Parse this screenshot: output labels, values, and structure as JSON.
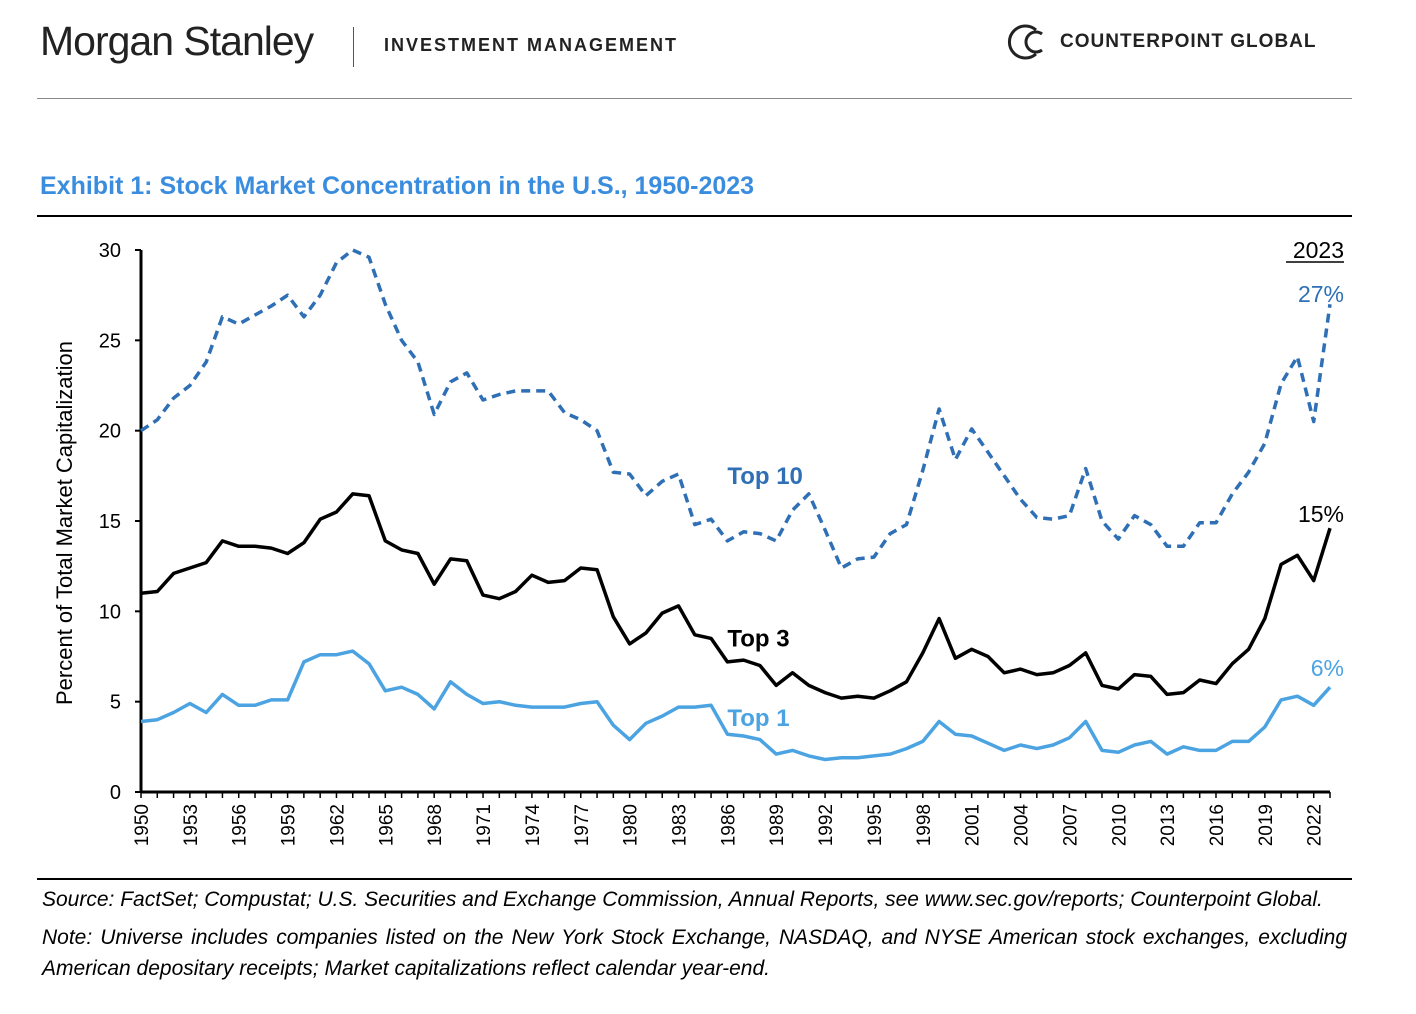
{
  "header": {
    "brand": "Morgan Stanley",
    "brand_sub": "INVESTMENT MANAGEMENT",
    "partner": "COUNTERPOINT GLOBAL",
    "partner_icon": "counterpoint-logo-icon"
  },
  "exhibit_title": "Exhibit 1: Stock Market Concentration in the U.S., 1950-2023",
  "chart_data": {
    "type": "line",
    "xlabel": "",
    "ylabel": "Percent of Total Market Capitalization",
    "ylim": [
      0,
      30
    ],
    "yticks": [
      "0",
      "5",
      "10",
      "15",
      "20",
      "25",
      "30"
    ],
    "xlim": [
      1950,
      2023
    ],
    "xticks": [
      "1950",
      "1953",
      "1956",
      "1959",
      "1962",
      "1965",
      "1968",
      "1971",
      "1974",
      "1977",
      "1980",
      "1983",
      "1986",
      "1989",
      "1992",
      "1995",
      "1998",
      "2001",
      "2004",
      "2007",
      "2010",
      "2013",
      "2016",
      "2019",
      "2022"
    ],
    "grid": false,
    "year_header": "2023",
    "x": [
      1950,
      1951,
      1952,
      1953,
      1954,
      1955,
      1956,
      1957,
      1958,
      1959,
      1960,
      1961,
      1962,
      1963,
      1964,
      1965,
      1966,
      1967,
      1968,
      1969,
      1970,
      1971,
      1972,
      1973,
      1974,
      1975,
      1976,
      1977,
      1978,
      1979,
      1980,
      1981,
      1982,
      1983,
      1984,
      1985,
      1986,
      1987,
      1988,
      1989,
      1990,
      1991,
      1992,
      1993,
      1994,
      1995,
      1996,
      1997,
      1998,
      1999,
      2000,
      2001,
      2002,
      2003,
      2004,
      2005,
      2006,
      2007,
      2008,
      2009,
      2010,
      2011,
      2012,
      2013,
      2014,
      2015,
      2016,
      2017,
      2018,
      2019,
      2020,
      2021,
      2022,
      2023
    ],
    "series": [
      {
        "name": "Top 10",
        "color": "#2e6fb5",
        "dash": true,
        "end_label": "27%",
        "values": [
          20.0,
          20.6,
          21.8,
          22.5,
          23.8,
          26.3,
          25.9,
          26.4,
          26.9,
          27.5,
          26.3,
          27.5,
          29.3,
          30.0,
          29.6,
          27.0,
          25.0,
          23.8,
          20.9,
          22.7,
          23.2,
          21.7,
          22.0,
          22.2,
          22.2,
          22.2,
          21.0,
          20.6,
          20.0,
          17.7,
          17.6,
          16.4,
          17.2,
          17.6,
          14.8,
          15.1,
          13.9,
          14.4,
          14.3,
          13.9,
          15.6,
          16.5,
          14.5,
          12.4,
          12.9,
          13.0,
          14.3,
          14.8,
          17.8,
          21.2,
          18.4,
          20.1,
          18.8,
          17.5,
          16.2,
          15.2,
          15.1,
          15.3,
          17.9,
          15.0,
          14.0,
          15.3,
          14.8,
          13.6,
          13.6,
          14.9,
          14.9,
          16.5,
          17.7,
          19.3,
          22.6,
          24.1,
          20.5,
          27.0
        ]
      },
      {
        "name": "Top 3",
        "color": "#000000",
        "dash": false,
        "end_label": "15%",
        "values": [
          11.0,
          11.1,
          12.1,
          12.4,
          12.7,
          13.9,
          13.6,
          13.6,
          13.5,
          13.2,
          13.8,
          15.1,
          15.5,
          16.5,
          16.4,
          13.9,
          13.4,
          13.2,
          11.5,
          12.9,
          12.8,
          10.9,
          10.7,
          11.1,
          12.0,
          11.6,
          11.7,
          12.4,
          12.3,
          9.7,
          8.2,
          8.8,
          9.9,
          10.3,
          8.7,
          8.5,
          7.2,
          7.3,
          7.0,
          5.9,
          6.6,
          5.9,
          5.5,
          5.2,
          5.3,
          5.2,
          5.6,
          6.1,
          7.7,
          9.6,
          7.4,
          7.9,
          7.5,
          6.6,
          6.8,
          6.5,
          6.6,
          7.0,
          7.7,
          5.9,
          5.7,
          6.5,
          6.4,
          5.4,
          5.5,
          6.2,
          6.0,
          7.1,
          7.9,
          9.6,
          12.6,
          13.1,
          11.7,
          14.6
        ]
      },
      {
        "name": "Top 1",
        "color": "#4ba3e2",
        "dash": false,
        "end_label": "6%",
        "values": [
          3.9,
          4.0,
          4.4,
          4.9,
          4.4,
          5.4,
          4.8,
          4.8,
          5.1,
          5.1,
          7.2,
          7.6,
          7.6,
          7.8,
          7.1,
          5.6,
          5.8,
          5.4,
          4.6,
          6.1,
          5.4,
          4.9,
          5.0,
          4.8,
          4.7,
          4.7,
          4.7,
          4.9,
          5.0,
          3.7,
          2.9,
          3.8,
          4.2,
          4.7,
          4.7,
          4.8,
          3.2,
          3.1,
          2.9,
          2.1,
          2.3,
          2.0,
          1.8,
          1.9,
          1.9,
          2.0,
          2.1,
          2.4,
          2.8,
          3.9,
          3.2,
          3.1,
          2.7,
          2.3,
          2.6,
          2.4,
          2.6,
          3.0,
          3.9,
          2.3,
          2.2,
          2.6,
          2.8,
          2.1,
          2.5,
          2.3,
          2.3,
          2.8,
          2.8,
          3.6,
          5.1,
          5.3,
          4.8,
          5.8
        ]
      }
    ],
    "series_labels": [
      {
        "text": "Top 10",
        "color": "#2e6fb5",
        "x": 1986,
        "y": 17.5
      },
      {
        "text": "Top 3",
        "color": "#000000",
        "x": 1986,
        "y": 8.5
      },
      {
        "text": "Top 1",
        "color": "#4ba3e2",
        "x": 1986,
        "y": 4.1
      }
    ]
  },
  "notes": {
    "source": "Source: FactSet; Compustat; U.S. Securities and Exchange Commission, Annual Reports, see www.sec.gov/reports; Counterpoint Global.",
    "note": "Note: Universe includes companies listed on the New York Stock Exchange, NASDAQ, and NYSE American stock exchanges, excluding American depositary receipts; Market capitalizations reflect calendar year-end."
  }
}
